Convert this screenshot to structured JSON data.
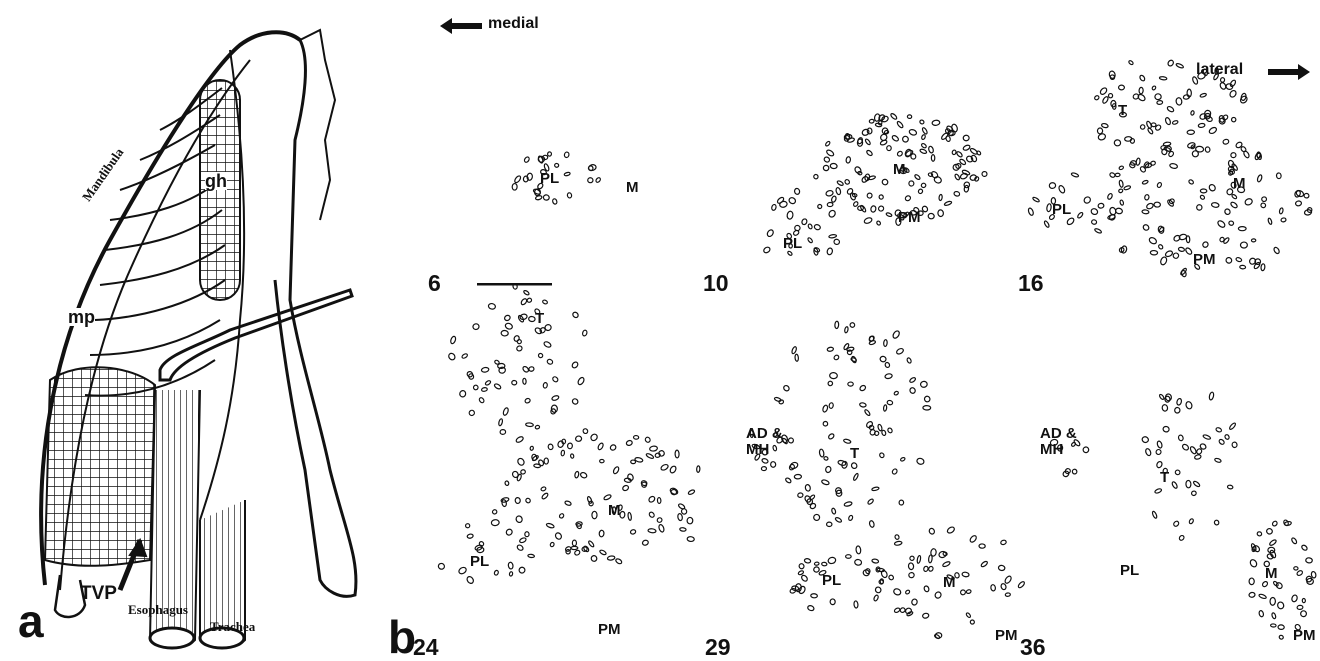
{
  "panel_a": {
    "label": "a",
    "mandibula": "Mandibula",
    "gh": "gh",
    "mp": "mp",
    "tvp": "TVP",
    "esophagus": "Esophagus",
    "trachea": "Trachea"
  },
  "panel_b": {
    "label": "b",
    "medial": "medial",
    "lateral": "lateral",
    "sections": [
      {
        "number": 6,
        "regions": [
          "PL",
          "M"
        ]
      },
      {
        "number": 10,
        "regions": [
          "PL",
          "M",
          "PM"
        ]
      },
      {
        "number": 16,
        "regions": [
          "T",
          "PL",
          "M",
          "PM"
        ]
      },
      {
        "number": 24,
        "regions": [
          "T",
          "PL",
          "M",
          "PM"
        ]
      },
      {
        "number": 29,
        "regions": [
          "AD & MH",
          "T",
          "PL",
          "M",
          "PM"
        ]
      },
      {
        "number": 36,
        "regions": [
          "AD & MH",
          "T",
          "PL",
          "M",
          "PM"
        ]
      }
    ]
  }
}
